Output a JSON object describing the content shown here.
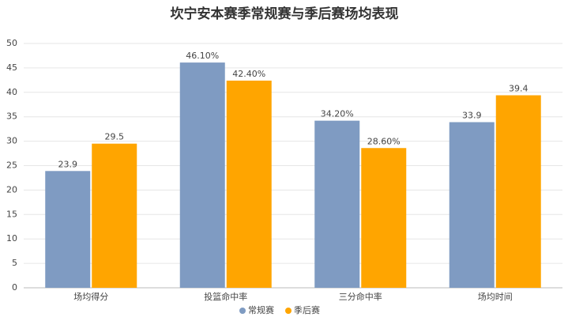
{
  "chart_data": {
    "type": "bar",
    "title": "坎宁安本赛季常规赛与季后赛场均表现",
    "categories": [
      "场均得分",
      "投篮命中率",
      "三分命中率",
      "场均时间"
    ],
    "series": [
      {
        "name": "常规赛",
        "color": "#7f9bc2",
        "values": [
          23.9,
          46.1,
          34.2,
          33.9
        ],
        "value_labels": [
          "23.9",
          "46.10%",
          "34.20%",
          "33.9"
        ]
      },
      {
        "name": "季后赛",
        "color": "#ffa500",
        "values": [
          29.5,
          42.4,
          28.6,
          39.4
        ],
        "value_labels": [
          "29.5",
          "42.40%",
          "28.60%",
          "39.4"
        ]
      }
    ],
    "ylim": [
      0,
      50
    ],
    "yticks": [
      0,
      5,
      10,
      15,
      20,
      25,
      30,
      35,
      40,
      45,
      50
    ],
    "grid": true,
    "legend": "bottom"
  }
}
